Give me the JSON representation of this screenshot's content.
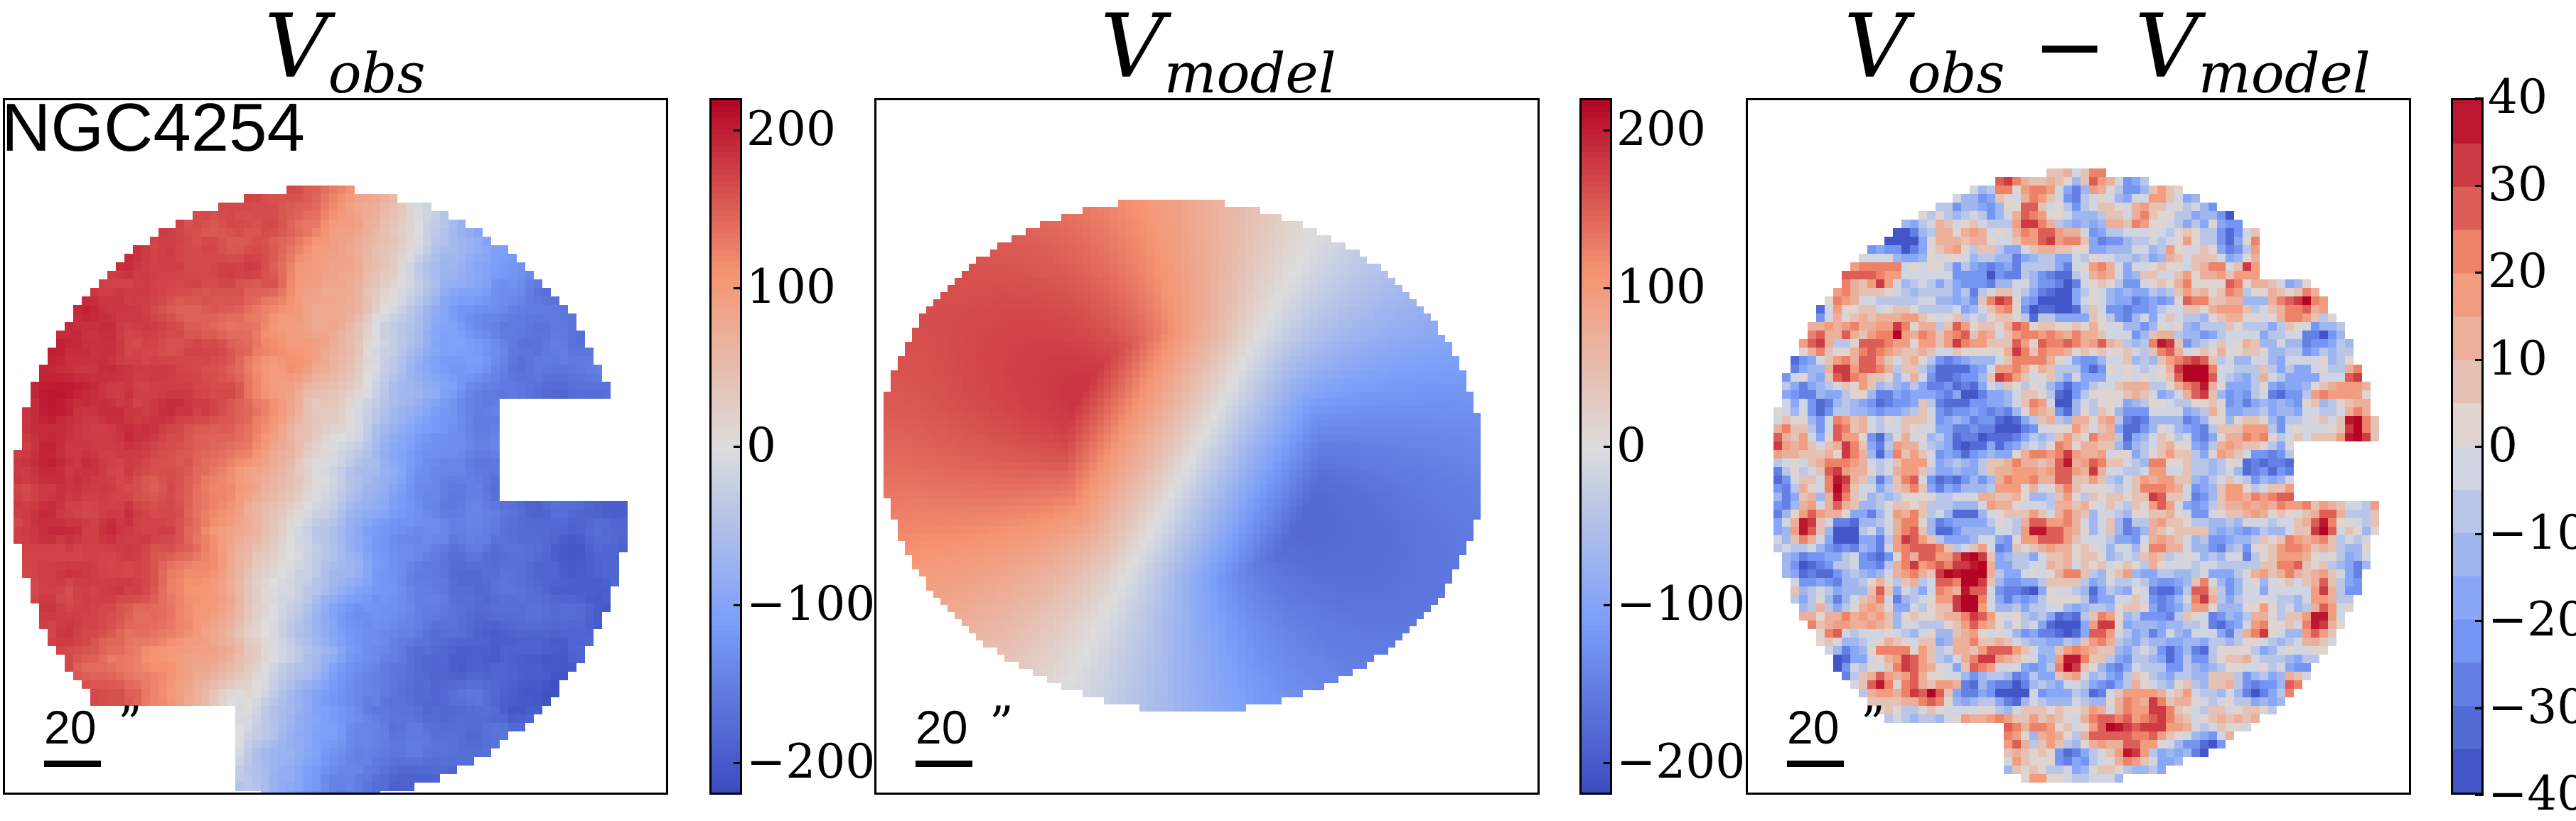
{
  "panels": [
    {
      "title_main": "V",
      "title_sub": "obs",
      "title_extra": ""
    },
    {
      "title_main": "V",
      "title_sub": "model",
      "title_extra": ""
    },
    {
      "title_main": "V",
      "title_sub": "obs",
      "title_extra": " − ",
      "title_main2": "V",
      "title_sub2": "model"
    }
  ],
  "galaxy_label": "NGC4254",
  "scalebar": {
    "value": "20",
    "unit": "”"
  },
  "colorbars": [
    {
      "ticks": [
        "200",
        "100",
        "0",
        "−100",
        "−200"
      ],
      "range": [
        -220,
        220
      ],
      "colormap": "coolwarm"
    },
    {
      "ticks": [
        "200",
        "100",
        "0",
        "−100",
        "−200"
      ],
      "range": [
        -220,
        220
      ],
      "colormap": "coolwarm"
    },
    {
      "ticks": [
        "40",
        "30",
        "20",
        "10",
        "0",
        "−10",
        "−20",
        "−30",
        "−40"
      ],
      "range": [
        -40,
        40
      ],
      "colormap": "coolwarm-discrete",
      "levels": 16
    }
  ],
  "colors": {
    "red_end": "#b40426",
    "blue_end": "#3b4cc0",
    "mid": "#dddddd"
  },
  "chart_data": [
    {
      "type": "heatmap",
      "title": "V_obs",
      "value_range": [
        -220,
        220
      ],
      "colorbar_ticks": [
        200,
        100,
        0,
        -100,
        -200
      ]
    },
    {
      "type": "heatmap",
      "title": "V_model",
      "value_range": [
        -220,
        220
      ],
      "colorbar_ticks": [
        200,
        100,
        0,
        -100,
        -200
      ]
    },
    {
      "type": "heatmap",
      "title": "V_obs - V_model",
      "value_range": [
        -40,
        40
      ],
      "colorbar_ticks": [
        40,
        30,
        20,
        10,
        0,
        -10,
        -20,
        -30,
        -40
      ]
    }
  ]
}
